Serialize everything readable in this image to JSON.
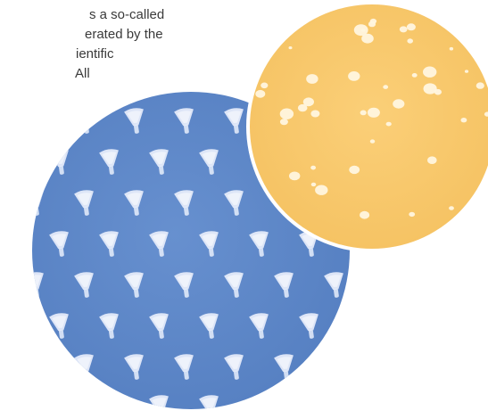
{
  "text_lines": [
    "s a so-called",
    "erated by the",
    "ientific",
    "All"
  ],
  "colors": {
    "blue_circle": "#5d87c8",
    "yellow_circle": "#f8c76a",
    "structure": "#e8eefb",
    "droplet": "#fff6df"
  }
}
